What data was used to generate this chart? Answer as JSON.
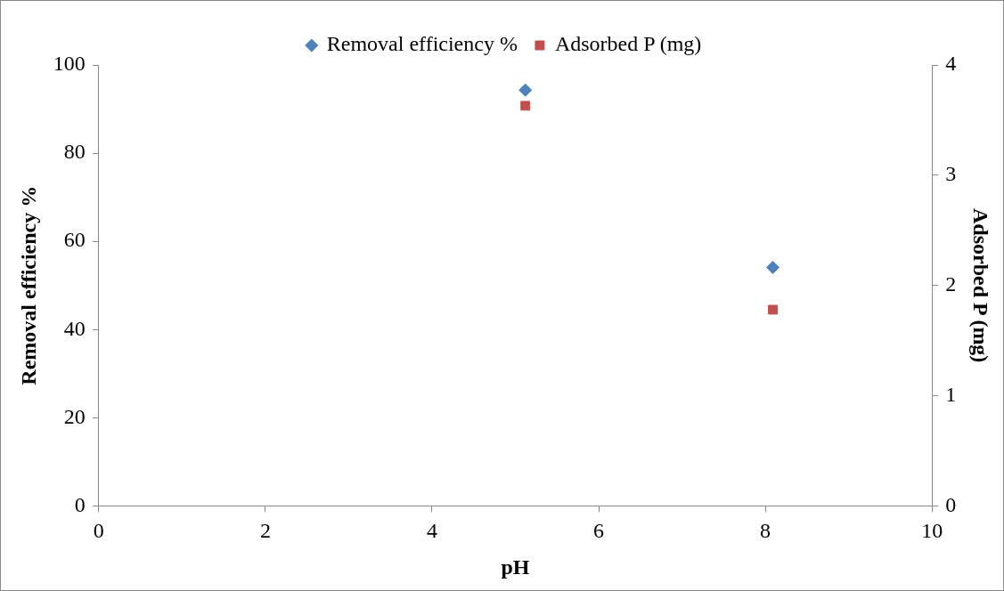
{
  "chart_data": {
    "type": "scatter",
    "xlabel": "pH",
    "ylabel": "Removal efficiency %",
    "y2label": "Adsorbed P (mg)",
    "xlim": [
      0,
      10
    ],
    "xticks": [
      0,
      2,
      4,
      6,
      8,
      10
    ],
    "ylim": [
      0,
      100
    ],
    "yticks": [
      0,
      20,
      40,
      60,
      80,
      100
    ],
    "y2lim": [
      0,
      4
    ],
    "y2ticks": [
      0,
      1,
      2,
      3,
      4
    ],
    "x": [
      5.12,
      8.09
    ],
    "series": [
      {
        "name": "Removal efficiency %",
        "color": "#4f81bd",
        "marker": "diamond",
        "values": [
          94.3,
          54.1
        ]
      },
      {
        "name": "Adsorbed P (mg)",
        "color": "#c0504d",
        "marker": "square",
        "axis": "y2",
        "values": [
          3.63,
          1.78
        ]
      }
    ],
    "grid": false,
    "legend": "top"
  }
}
